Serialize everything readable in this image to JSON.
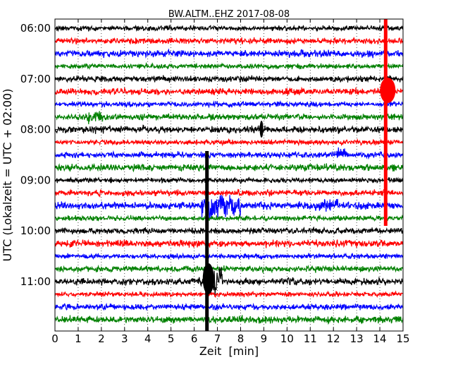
{
  "chart_data": {
    "type": "line",
    "title": "BW.ALTM..EHZ 2017-08-08",
    "xlabel": "Zeit  [min]",
    "ylabel": "UTC (Lokalzeit = UTC + 02:00)",
    "xlim": [
      0,
      15
    ],
    "x_ticks": [
      "0",
      "1",
      "2",
      "3",
      "4",
      "5",
      "6",
      "7",
      "8",
      "9",
      "10",
      "11",
      "12",
      "13",
      "14",
      "15"
    ],
    "y_ticks": [
      "06:00",
      "07:00",
      "08:00",
      "09:00",
      "10:00",
      "11:00"
    ],
    "trace_interval_min": 15,
    "start_time": "06:00",
    "grid": "vertical dotted",
    "colors": [
      "#000000",
      "#ff0000",
      "#0000ff",
      "#008000"
    ],
    "traces": [
      {
        "start": "06:00",
        "color": "#000000"
      },
      {
        "start": "06:15",
        "color": "#ff0000"
      },
      {
        "start": "06:30",
        "color": "#0000ff"
      },
      {
        "start": "06:45",
        "color": "#008000"
      },
      {
        "start": "07:00",
        "color": "#000000"
      },
      {
        "start": "07:15",
        "color": "#ff0000"
      },
      {
        "start": "07:30",
        "color": "#0000ff"
      },
      {
        "start": "07:45",
        "color": "#008000"
      },
      {
        "start": "08:00",
        "color": "#000000"
      },
      {
        "start": "08:15",
        "color": "#ff0000"
      },
      {
        "start": "08:30",
        "color": "#0000ff"
      },
      {
        "start": "08:45",
        "color": "#008000"
      },
      {
        "start": "09:00",
        "color": "#000000"
      },
      {
        "start": "09:15",
        "color": "#ff0000"
      },
      {
        "start": "09:30",
        "color": "#0000ff"
      },
      {
        "start": "09:45",
        "color": "#008000"
      },
      {
        "start": "10:00",
        "color": "#000000"
      },
      {
        "start": "10:15",
        "color": "#ff0000"
      },
      {
        "start": "10:30",
        "color": "#0000ff"
      },
      {
        "start": "10:45",
        "color": "#008000"
      },
      {
        "start": "11:00",
        "color": "#000000"
      },
      {
        "start": "11:15",
        "color": "#ff0000"
      },
      {
        "start": "11:30",
        "color": "#0000ff"
      },
      {
        "start": "11:45",
        "color": "#008000"
      }
    ]
  }
}
